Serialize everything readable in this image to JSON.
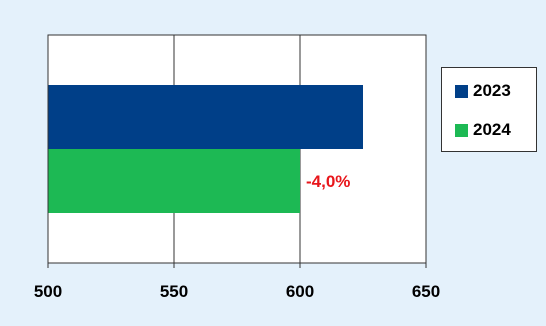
{
  "chart_data": {
    "type": "bar",
    "orientation": "horizontal",
    "categories": [
      ""
    ],
    "series": [
      {
        "name": "2023",
        "values": [
          625
        ],
        "color": "#003f88"
      },
      {
        "name": "2024",
        "values": [
          600
        ],
        "color": "#1db954"
      }
    ],
    "xlim": [
      500,
      650
    ],
    "x_ticks": [
      "500",
      "550",
      "600",
      "650"
    ],
    "annotation": {
      "text": "-4,0%",
      "color": "#e8161b",
      "series": "2024"
    },
    "grid": "vertical",
    "legend_position": "right",
    "background": "#e4f1fb",
    "plot_background": "#ffffff"
  }
}
